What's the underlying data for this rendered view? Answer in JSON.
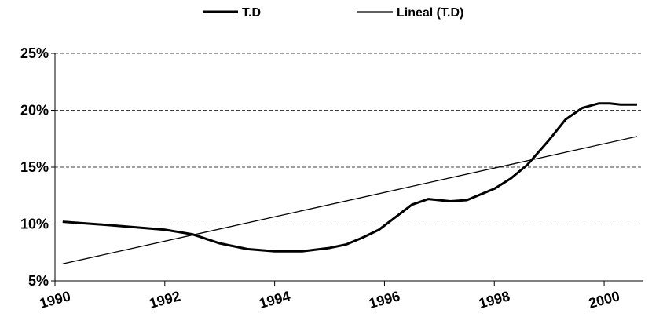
{
  "chart_data": {
    "type": "line",
    "xlim": [
      1990,
      2000.7
    ],
    "xticks": [
      1990,
      1992,
      1994,
      1996,
      1998,
      2000
    ],
    "ylim": [
      5,
      25
    ],
    "yticks": [
      {
        "value": 5,
        "label": "5%"
      },
      {
        "value": 10,
        "label": "10%"
      },
      {
        "value": 15,
        "label": "15%"
      },
      {
        "value": 20,
        "label": "20%"
      },
      {
        "value": 25,
        "label": "25%"
      }
    ],
    "grid": true,
    "legend": "top",
    "series": [
      {
        "name": "T.D",
        "color": "#000000",
        "width": 3,
        "x": [
          1990.14,
          1991,
          1992,
          1992.5,
          1993,
          1993.5,
          1994,
          1994.5,
          1995,
          1995.3,
          1995.6,
          1995.9,
          1996.2,
          1996.5,
          1996.8,
          1997.2,
          1997.5,
          1998,
          1998.3,
          1998.6,
          1999,
          1999.3,
          1999.6,
          1999.9,
          2000.1,
          2000.3,
          2000.6
        ],
        "values": [
          10.2,
          9.9,
          9.5,
          9.1,
          8.3,
          7.8,
          7.6,
          7.6,
          7.9,
          8.2,
          8.8,
          9.5,
          10.6,
          11.7,
          12.2,
          12.0,
          12.1,
          13.1,
          14.0,
          15.2,
          17.4,
          19.2,
          20.2,
          20.6,
          20.6,
          20.5,
          20.5
        ]
      },
      {
        "name": "Lineal (T.D)",
        "color": "#000000",
        "width": 1.3,
        "x": [
          1990.14,
          2000.6
        ],
        "values": [
          6.5,
          17.7
        ]
      }
    ]
  }
}
